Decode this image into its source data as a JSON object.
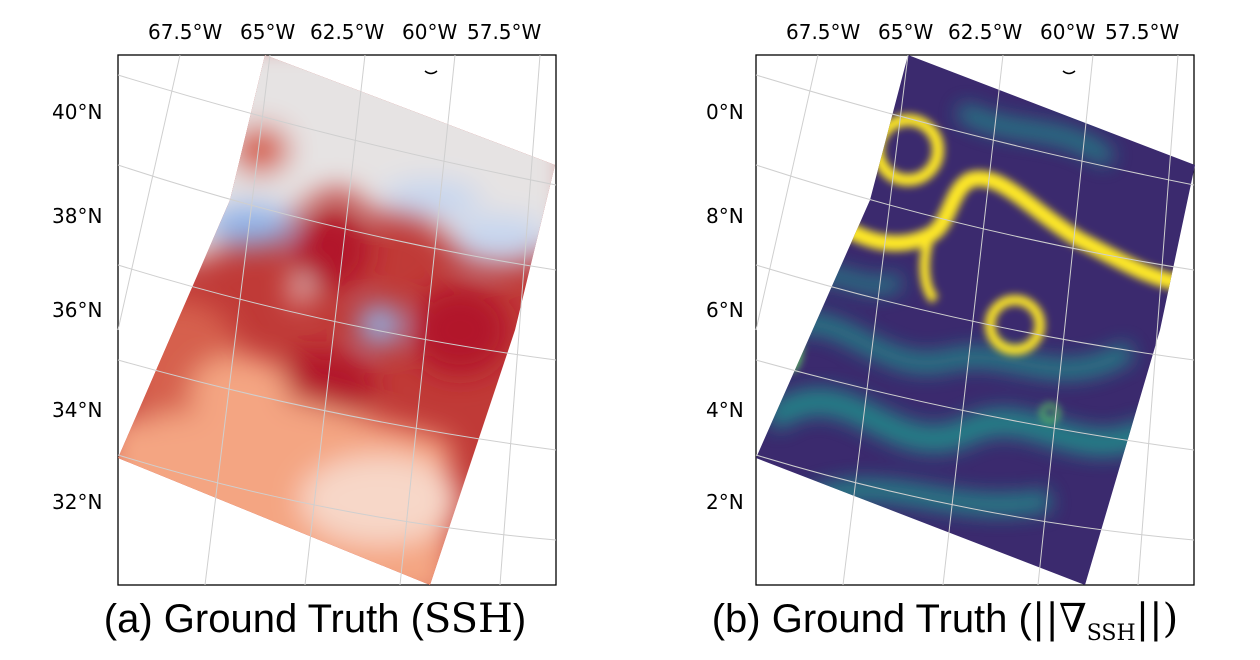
{
  "panels": [
    {
      "id": "a",
      "caption_prefix": "(a) Ground Truth (",
      "caption_math": "SSH",
      "caption_sub": "",
      "caption_suffix": ")",
      "lon_labels": [
        "67.5°W",
        "65°W",
        "62.5°W",
        "60°W",
        "57.5°W"
      ],
      "lat_labels": [
        "40°N",
        "38°N",
        "36°N",
        "34°N",
        "32°N"
      ],
      "colormap": "RdBu_r",
      "colors": {
        "strong": "#b2182b",
        "warm": "#d6604d",
        "light": "#f4a582",
        "pale": "#f7d7c8",
        "neutral": "#e6e3e3",
        "cool": "#c6d6ef",
        "cold": "#8fb3e8"
      }
    },
    {
      "id": "b",
      "caption_prefix": "(b) Ground Truth (",
      "caption_math": "||∇",
      "caption_sub": "SSH",
      "caption_suffix": "||)",
      "lon_labels": [
        "67.5°W",
        "65°W",
        "62.5°W",
        "60°W",
        "57.5°W"
      ],
      "lat_labels": [
        "0°N",
        "8°N",
        "6°N",
        "4°N",
        "2°N"
      ],
      "colormap": "viridis",
      "colors": {
        "low": "#3b2a6e",
        "mid": "#21918c",
        "high": "#fde725",
        "midhigh": "#5ec962"
      }
    }
  ]
}
